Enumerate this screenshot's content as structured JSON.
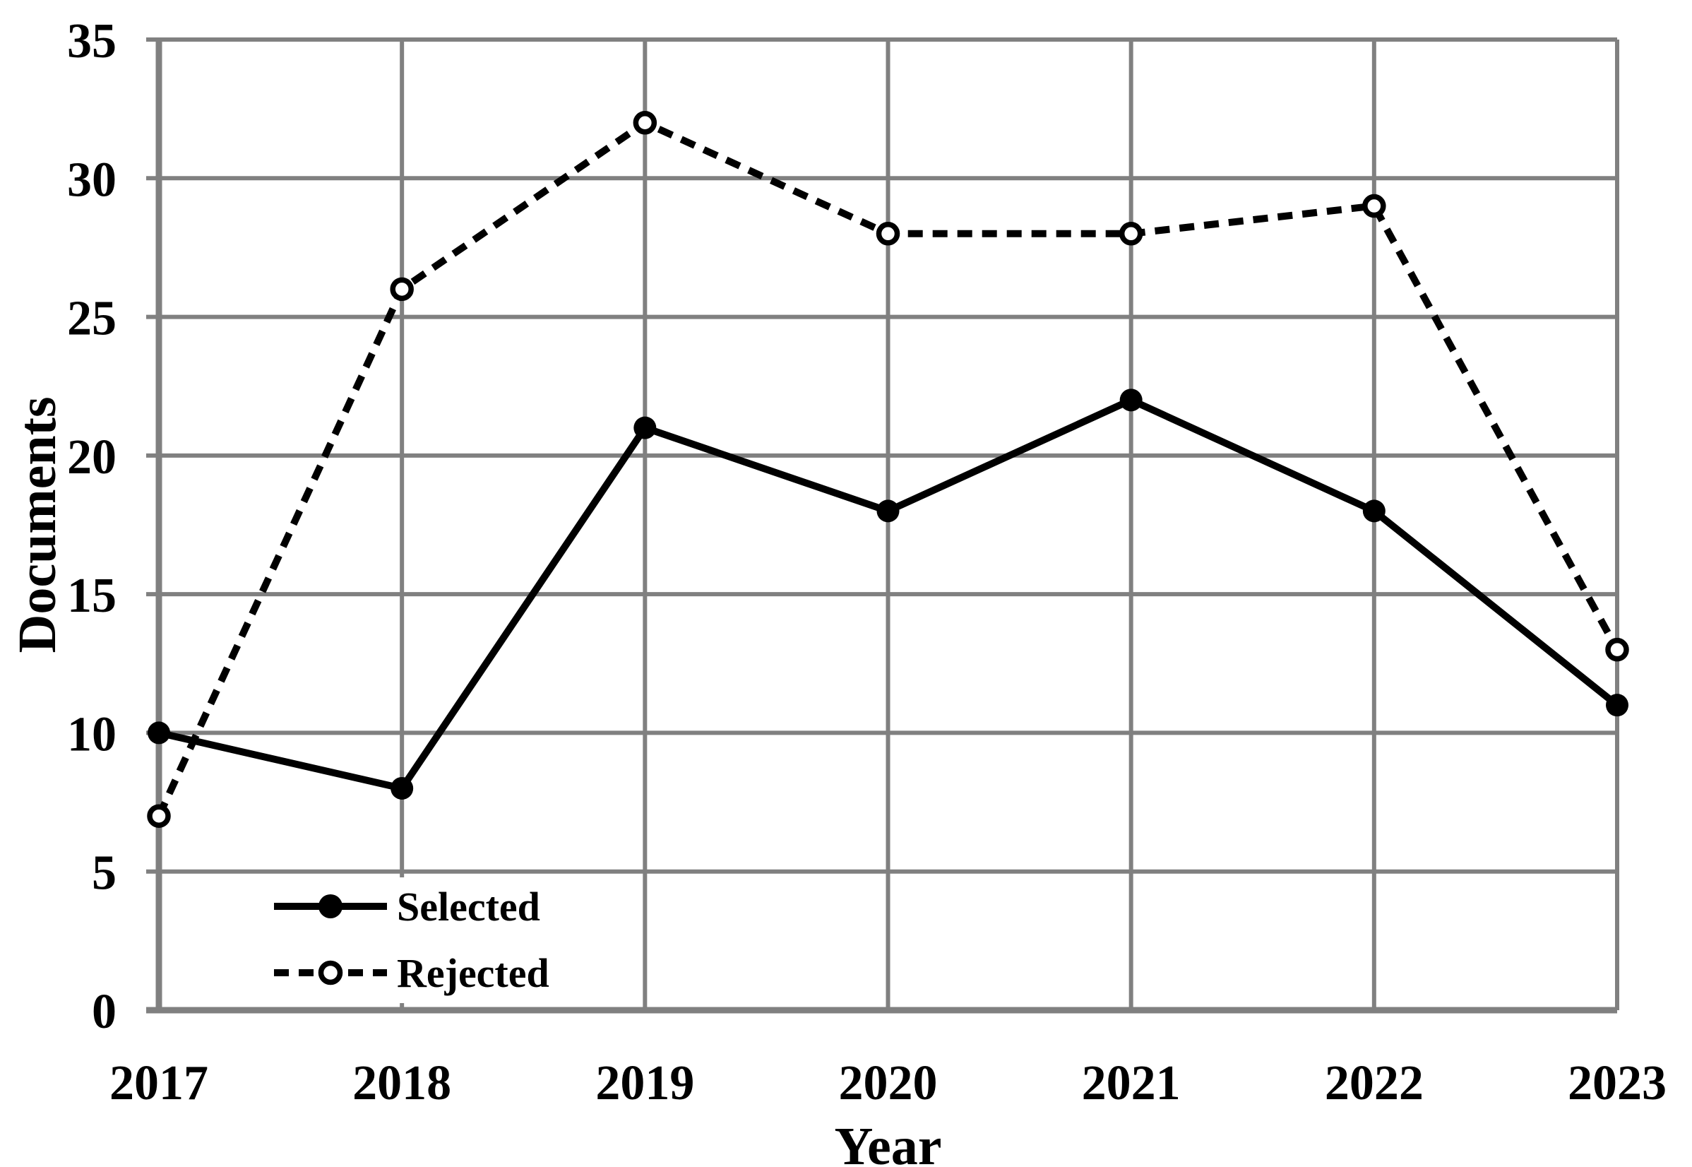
{
  "figure": {
    "background": "#ffffff"
  },
  "chart_data": {
    "type": "line",
    "title": "",
    "xlabel": "Year",
    "ylabel": "Documents",
    "categories": [
      "2017",
      "2018",
      "2019",
      "2020",
      "2021",
      "2022",
      "2023"
    ],
    "series": [
      {
        "name": "Selected",
        "values": [
          10,
          8,
          21,
          18,
          22,
          18,
          11
        ],
        "line_style": "solid",
        "marker": "filled-circle",
        "color": "#000000"
      },
      {
        "name": "Rejected",
        "values": [
          7,
          26,
          32,
          28,
          28,
          29,
          13
        ],
        "line_style": "dashed",
        "marker": "open-circle",
        "color": "#000000"
      }
    ],
    "ylim": [
      0,
      35
    ],
    "ytick_step": 5,
    "yticks": [
      "0",
      "5",
      "10",
      "15",
      "20",
      "25",
      "30",
      "35"
    ],
    "grid": true,
    "grid_color": "#808080",
    "axis_color": "#808080",
    "text_color": "#000000",
    "legend_position": "lower-left-inside",
    "legend_labels": [
      "Selected",
      "Rejected"
    ]
  }
}
